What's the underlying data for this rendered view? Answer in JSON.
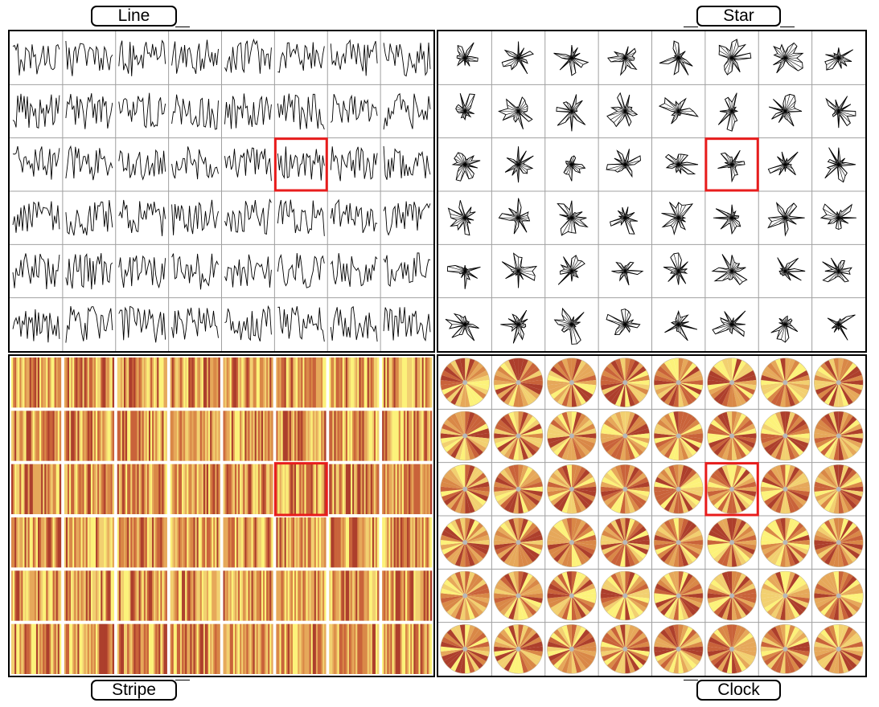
{
  "panels": {
    "line": {
      "label": "Line"
    },
    "star": {
      "label": "Star"
    },
    "stripe": {
      "label": "Stripe"
    },
    "clock": {
      "label": "Clock"
    }
  },
  "chart_data": [
    {
      "type": "line",
      "title": "Line",
      "grid": {
        "rows": 6,
        "cols": 8
      },
      "highlight": {
        "row": 2,
        "col": 5,
        "color": "#e81c1c"
      }
    },
    {
      "type": "star",
      "title": "Star",
      "grid": {
        "rows": 6,
        "cols": 8
      },
      "highlight": {
        "row": 2,
        "col": 5,
        "color": "#e81c1c"
      }
    },
    {
      "type": "heatmap",
      "title": "Stripe",
      "grid": {
        "rows": 6,
        "cols": 8
      },
      "highlight": {
        "row": 2,
        "col": 5,
        "color": "#e81c1c"
      },
      "palette": [
        "#fcf27a",
        "#f2d070",
        "#e6a85a",
        "#d98847",
        "#c9633a",
        "#ad3f2c"
      ]
    },
    {
      "type": "pie",
      "title": "Clock",
      "grid": {
        "rows": 6,
        "cols": 8
      },
      "highlight": {
        "row": 2,
        "col": 5,
        "color": "#e81c1c"
      },
      "palette": [
        "#fcf27a",
        "#f2d070",
        "#e6a85a",
        "#d98847",
        "#c9633a",
        "#ad3f2c"
      ]
    }
  ],
  "colors": {
    "grid": "#a0a0a0",
    "mark": "#000000",
    "highlight": "#e81c1c",
    "hub": "#b8b8b8"
  }
}
